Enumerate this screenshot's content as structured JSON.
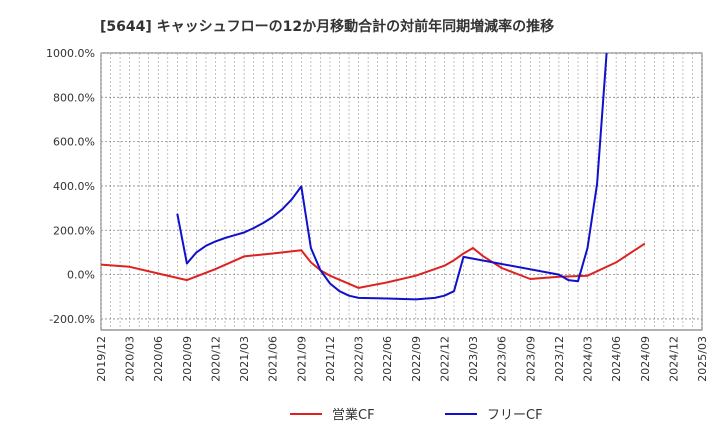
{
  "chart_data": {
    "type": "line",
    "title": "[5644]  キャッシュフローの12か月移動合計の対前年同期増減率の推移",
    "xlabel": "",
    "ylabel": "",
    "ylim": [
      -250,
      1000
    ],
    "y_ticks": [
      -200,
      0,
      200,
      400,
      600,
      800,
      1000
    ],
    "y_tick_labels": [
      "-200.0%",
      "0.0%",
      "200.0%",
      "400.0%",
      "600.0%",
      "800.0%",
      "1000.0%"
    ],
    "x_tick_labels": [
      "2019/12",
      "2020/03",
      "2020/06",
      "2020/09",
      "2020/12",
      "2021/03",
      "2021/06",
      "2021/09",
      "2021/12",
      "2022/03",
      "2022/06",
      "2022/09",
      "2022/12",
      "2023/03",
      "2023/06",
      "2023/09",
      "2023/12",
      "2024/03",
      "2024/06",
      "2024/09",
      "2024/12",
      "2025/03"
    ],
    "grid": true,
    "legend_position": "bottom",
    "series": [
      {
        "name": "営業CF",
        "color": "#dd2222",
        "points": [
          [
            "2019/12",
            45
          ],
          [
            "2020/03",
            35
          ],
          [
            "2020/06",
            5
          ],
          [
            "2020/09",
            -25
          ],
          [
            "2020/12",
            25
          ],
          [
            "2021/03",
            82
          ],
          [
            "2021/06",
            95
          ],
          [
            "2021/09",
            110
          ],
          [
            "2021/10",
            55
          ],
          [
            "2021/11",
            20
          ],
          [
            "2021/12",
            -5
          ],
          [
            "2022/03",
            -60
          ],
          [
            "2022/06",
            -35
          ],
          [
            "2022/09",
            -5
          ],
          [
            "2022/12",
            40
          ],
          [
            "2023/01",
            65
          ],
          [
            "2023/02",
            95
          ],
          [
            "2023/03",
            120
          ],
          [
            "2023/04",
            85
          ],
          [
            "2023/06",
            30
          ],
          [
            "2023/09",
            -20
          ],
          [
            "2023/12",
            -10
          ],
          [
            "2024/03",
            -5
          ],
          [
            "2024/06",
            55
          ],
          [
            "2024/09",
            140
          ]
        ]
      },
      {
        "name": "フリーCF",
        "color": "#1111cc",
        "points": [
          [
            "2020/08",
            275
          ],
          [
            "2020/09",
            50
          ],
          [
            "2020/10",
            100
          ],
          [
            "2020/11",
            130
          ],
          [
            "2020/12",
            150
          ],
          [
            "2021/01",
            165
          ],
          [
            "2021/02",
            178
          ],
          [
            "2021/03",
            190
          ],
          [
            "2021/04",
            210
          ],
          [
            "2021/05",
            233
          ],
          [
            "2021/06",
            260
          ],
          [
            "2021/07",
            295
          ],
          [
            "2021/08",
            340
          ],
          [
            "2021/09",
            398
          ],
          [
            "2021/10",
            120
          ],
          [
            "2021/11",
            20
          ],
          [
            "2021/12",
            -40
          ],
          [
            "2022/01",
            -75
          ],
          [
            "2022/02",
            -95
          ],
          [
            "2022/03",
            -105
          ],
          [
            "2022/06",
            -108
          ],
          [
            "2022/09",
            -112
          ],
          [
            "2022/11",
            -105
          ],
          [
            "2022/12",
            -95
          ],
          [
            "2023/01",
            -75
          ],
          [
            "2023/02",
            80
          ],
          [
            "2023/12",
            0
          ],
          [
            "2024/01",
            -25
          ],
          [
            "2024/02",
            -30
          ],
          [
            "2024/03",
            120
          ],
          [
            "2024/04",
            410
          ],
          [
            "2024/05",
            1000
          ]
        ]
      }
    ]
  }
}
